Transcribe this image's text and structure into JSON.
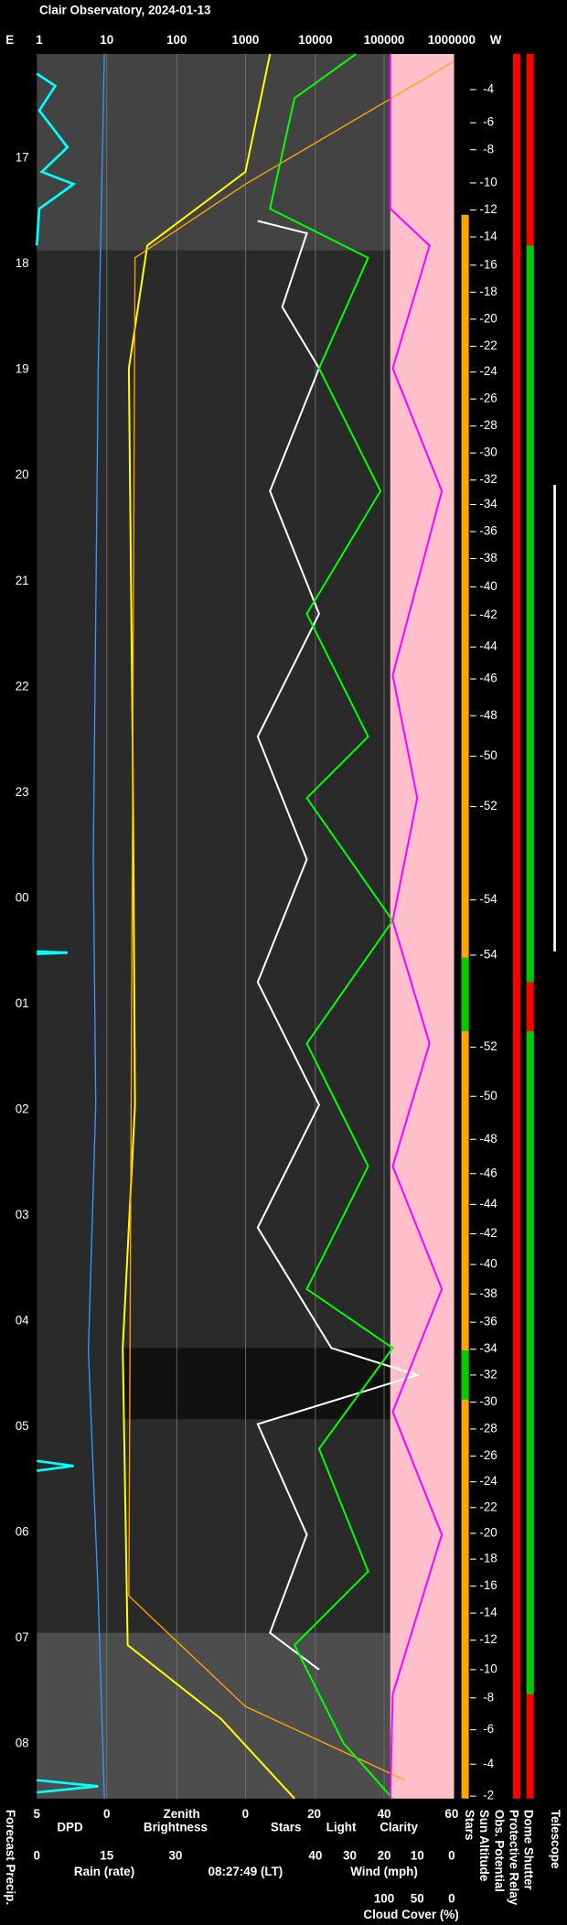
{
  "header": {
    "title": "Clair Observatory, 2024-01-13"
  },
  "top_axis": {
    "labels": [
      "E",
      "1",
      "10",
      "100",
      "1000",
      "10000",
      "100000",
      "1000000",
      "W"
    ]
  },
  "time_labels": [
    "17",
    "18",
    "19",
    "20",
    "21",
    "22",
    "23",
    "00",
    "01",
    "02",
    "03",
    "04",
    "05",
    "06",
    "07",
    "08"
  ],
  "altitude_labels": [
    "-4",
    "-6",
    "-8",
    "-10",
    "-12",
    "-14",
    "-16",
    "-18",
    "-20",
    "-22",
    "-24",
    "-26",
    "-28",
    "-30",
    "-32",
    "-34",
    "-36",
    "-38",
    "-40",
    "-42",
    "-44",
    "-46",
    "-48",
    "-50",
    "-52",
    "-54",
    "-54",
    "-52",
    "-50",
    "-48",
    "-46",
    "-44",
    "-42",
    "-40",
    "-38",
    "-36",
    "-34",
    "-32",
    "-30",
    "-28",
    "-26",
    "-24",
    "-22",
    "-20",
    "-18",
    "-16",
    "-14",
    "-12",
    "-10",
    "-8",
    "-6",
    "-4",
    "-2"
  ],
  "bottom": {
    "row1": [
      "5",
      "0",
      "Zenith",
      "0",
      "20",
      "40",
      "60"
    ],
    "row2": [
      "DPD",
      "Brightness",
      "Stars",
      "Light",
      "Clarity"
    ],
    "row3": [
      "0",
      "15",
      "30",
      "40",
      "30",
      "20",
      "10",
      "0"
    ],
    "row4": [
      "Rain (rate)",
      "08:27:49 (LT)",
      "Wind (mph)"
    ],
    "row5": [
      "100",
      "50",
      "0"
    ],
    "row6": [
      "Cloud Cover (%)"
    ]
  },
  "column_labels": [
    "Forecast Precip.",
    "Stars",
    "Sun Altitude",
    "Obs. Potential",
    "Protective Relay",
    "Dome Shutter",
    "Telescope"
  ]
}
